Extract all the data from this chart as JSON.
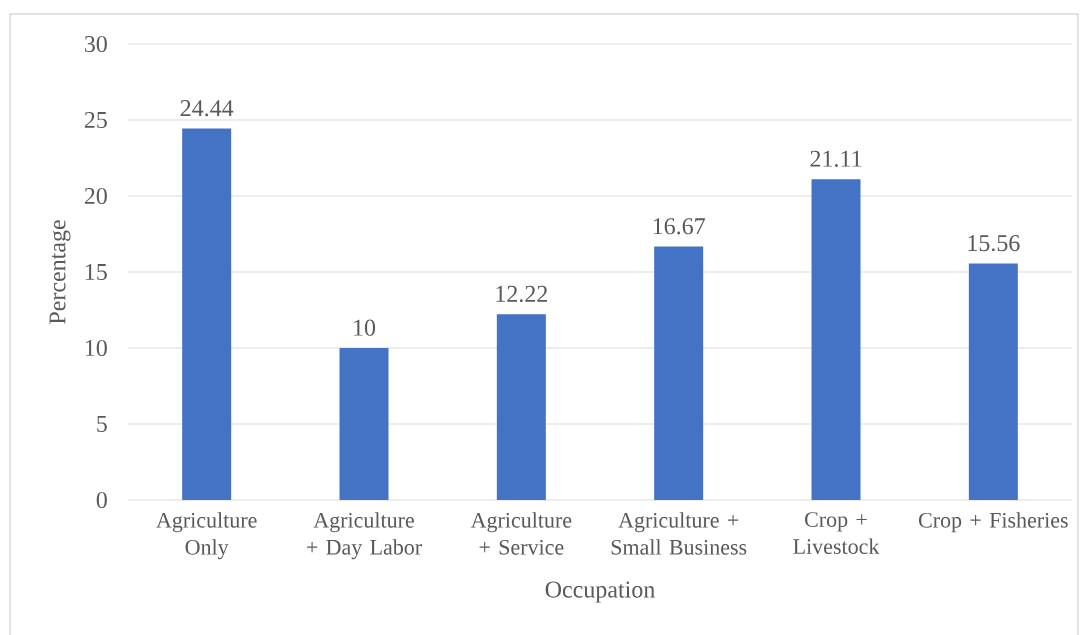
{
  "chart_data": {
    "type": "bar",
    "xlabel": "Occupation",
    "ylabel": "Percentage",
    "categories": [
      "Agriculture Only",
      "Agriculture + Day Labor",
      "Agriculture + Service",
      "Agriculture + Small Business",
      "Crop + Livestock",
      "Crop + Fisheries"
    ],
    "values": [
      24.44,
      10,
      12.22,
      16.67,
      21.11,
      15.56
    ],
    "color": "#4472c4",
    "ylim": [
      0,
      30
    ],
    "yticks": [
      0,
      5,
      10,
      15,
      20,
      25,
      30
    ],
    "grid": "y",
    "data_labels": true
  }
}
